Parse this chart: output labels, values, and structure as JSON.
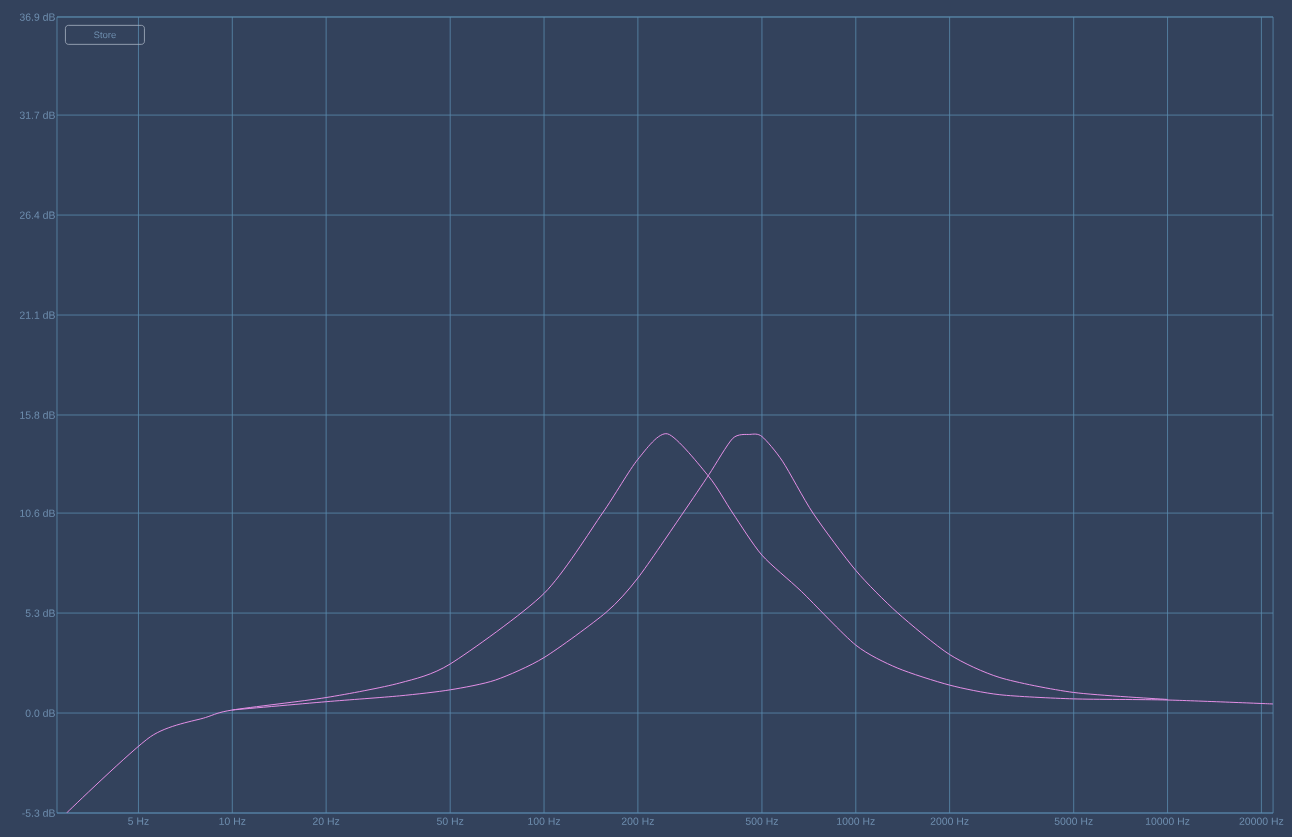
{
  "chart_data": {
    "type": "line",
    "log": "x",
    "grid": true,
    "marker": "none",
    "xlim": [
      2.74,
      21800
    ],
    "ylim": [
      -5.3,
      36.9
    ],
    "xticks": [
      {
        "value": 5,
        "label": "5 Hz"
      },
      {
        "value": 10,
        "label": "10 Hz"
      },
      {
        "value": 20,
        "label": "20 Hz"
      },
      {
        "value": 50,
        "label": "50 Hz"
      },
      {
        "value": 100,
        "label": "100 Hz"
      },
      {
        "value": 200,
        "label": "200 Hz"
      },
      {
        "value": 500,
        "label": "500 Hz"
      },
      {
        "value": 1000,
        "label": "1000 Hz"
      },
      {
        "value": 2000,
        "label": "2000 Hz"
      },
      {
        "value": 5000,
        "label": "5000 Hz"
      },
      {
        "value": 10000,
        "label": "10000 Hz"
      },
      {
        "value": 20000,
        "label": "20000 Hz"
      }
    ],
    "yticks": [
      {
        "value": -5.3,
        "label": "-5.3 dB"
      },
      {
        "value": 0,
        "label": "0.0 dB"
      },
      {
        "value": 5.3,
        "label": "5.3 dB"
      },
      {
        "value": 10.6,
        "label": "10.6 dB"
      },
      {
        "value": 15.8,
        "label": "15.8 dB"
      },
      {
        "value": 21.1,
        "label": "21.1 dB"
      },
      {
        "value": 26.4,
        "label": "26.4 dB"
      },
      {
        "value": 31.7,
        "label": "31.7 dB"
      },
      {
        "value": 36.9,
        "label": "36.9 dB"
      }
    ],
    "annotations": [
      "Store"
    ],
    "series": [
      {
        "color": "#e490e6",
        "x": [
          2.94,
          5.46,
          8.2,
          10,
          20,
          34.4,
          50,
          100,
          154,
          200,
          249,
          338,
          403,
          500,
          670,
          1000,
          1358,
          2000,
          2898,
          5000,
          10000,
          21800
        ],
        "values": [
          -5.3,
          -1.26,
          -0.24,
          0.16,
          0.82,
          1.59,
          2.6,
          6.34,
          10.6,
          13.45,
          14.8,
          12.53,
          10.6,
          8.37,
          6.44,
          3.6,
          2.39,
          1.48,
          0.97,
          0.75,
          0.69,
          0.48
        ]
      },
      {
        "color": "#e490e6",
        "x": [
          10,
          20,
          34.4,
          50,
          69.9,
          100,
          158,
          200,
          279,
          338,
          403,
          457,
          500,
          582,
          729,
          1000,
          1358,
          2000,
          2898,
          5000,
          10000
        ],
        "values": [
          0.16,
          0.6,
          0.91,
          1.23,
          1.75,
          2.94,
          5.33,
          7.16,
          10.6,
          12.64,
          14.56,
          14.77,
          14.66,
          13.35,
          10.6,
          7.56,
          5.33,
          3.1,
          1.88,
          1.09,
          0.72
        ]
      }
    ]
  }
}
